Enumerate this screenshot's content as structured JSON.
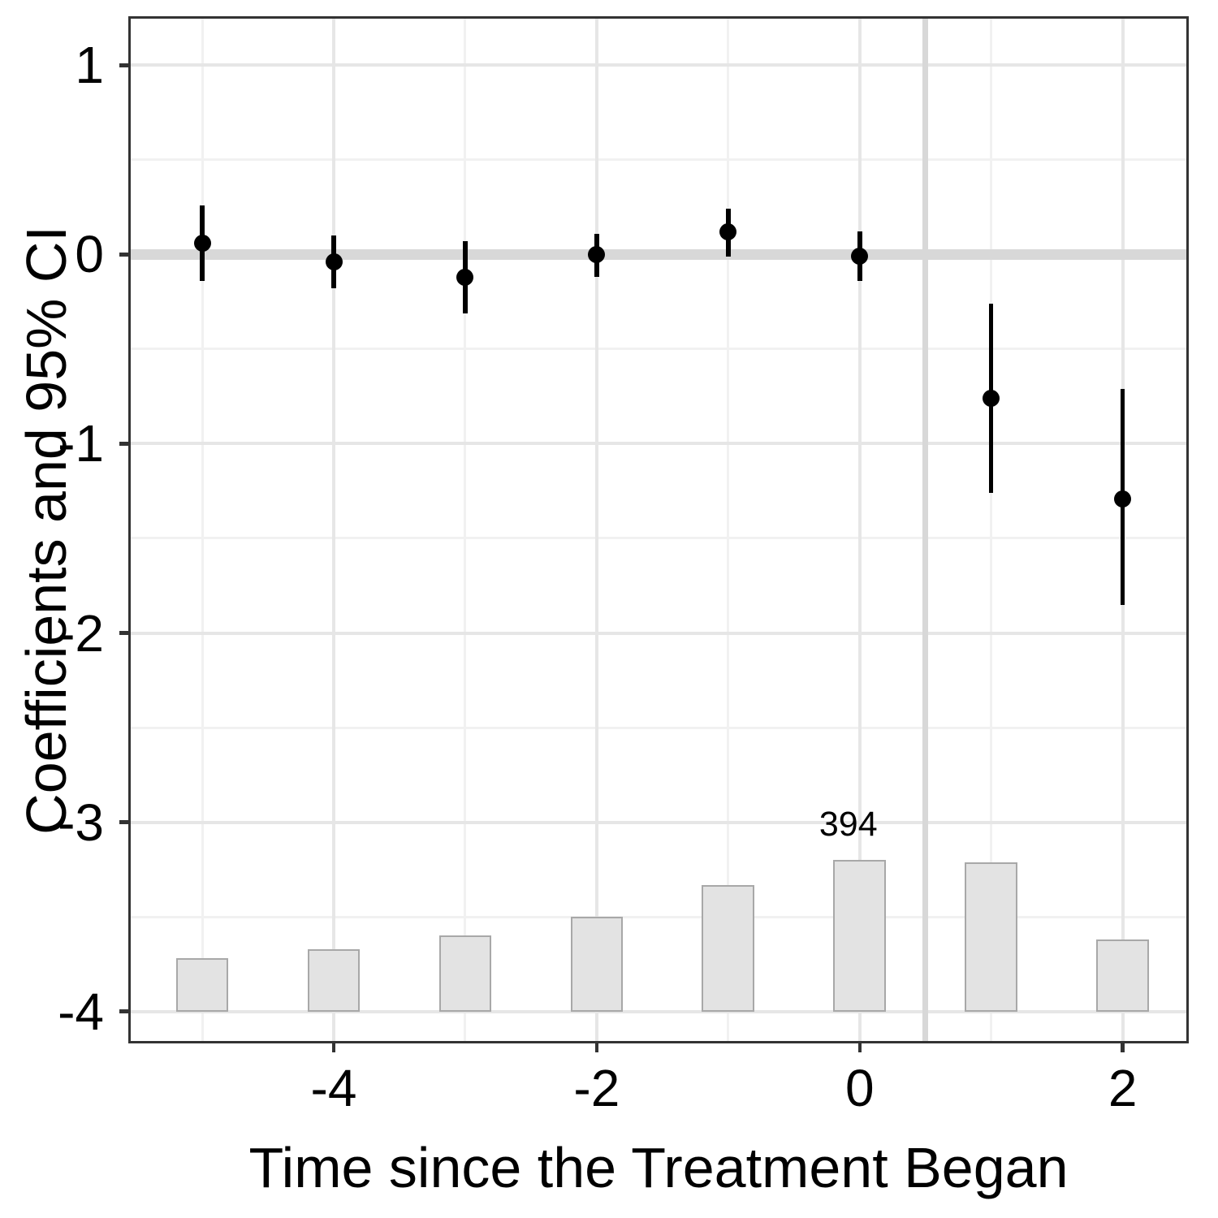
{
  "chart_data": {
    "type": "scatter",
    "subtype": "event-study coefficient plot with observation histogram",
    "title": "",
    "xlabel": "Time since the Treatment Began",
    "ylabel": "Coefficients and 95% CI",
    "x": [
      -5,
      -4,
      -3,
      -2,
      -1,
      0,
      1,
      2
    ],
    "series": [
      {
        "name": "coefficients",
        "type": "scatter",
        "marker": "circle",
        "color": "#000000",
        "values": [
          0.06,
          -0.04,
          -0.12,
          0.0,
          0.12,
          -0.01,
          -0.76,
          -1.29
        ],
        "ci_low": [
          -0.14,
          -0.18,
          -0.31,
          -0.12,
          -0.01,
          -0.14,
          -1.26,
          -1.85
        ],
        "ci_high": [
          0.26,
          0.1,
          0.07,
          0.11,
          0.24,
          0.12,
          -0.26,
          -0.71
        ]
      },
      {
        "name": "observation-histogram",
        "type": "bar",
        "fill": "#e3e3e3",
        "stroke": "#a8a8a8",
        "baseline": -4,
        "bar_width": 0.4,
        "tops": [
          -3.72,
          -3.67,
          -3.6,
          -3.5,
          -3.33,
          -3.2,
          -3.21,
          -3.62
        ],
        "count_label": {
          "x": 0,
          "text": "394"
        }
      }
    ],
    "reference_lines": {
      "hline_y": 0,
      "vline_x": 0.5,
      "color": "#d8d8d8"
    },
    "x_ticks": [
      -4,
      -2,
      0,
      2
    ],
    "x_tick_labels": [
      "-4",
      "-2",
      "0",
      "2"
    ],
    "y_ticks": [
      1,
      0,
      -1,
      -2,
      -3,
      -4
    ],
    "y_tick_labels": [
      "1",
      "0",
      "-1",
      "-2",
      "-3",
      "-4"
    ],
    "x_minor_gridlines": [
      -5,
      -3,
      -1,
      1
    ],
    "y_minor_gridlines": [
      0.5,
      -0.5,
      -1.5,
      -2.5,
      -3.5
    ],
    "xlim": [
      -5.55,
      2.49
    ],
    "ylim": [
      -4.16,
      1.25
    ],
    "grid": "major+minor",
    "legend": "none",
    "colors": {
      "background": "#ffffff",
      "panel_border": "#333333",
      "major_grid": "#e6e6e6",
      "minor_grid": "#f1f1f1",
      "tick_mark": "#333333",
      "text": "#000000",
      "point": "#000000"
    }
  }
}
